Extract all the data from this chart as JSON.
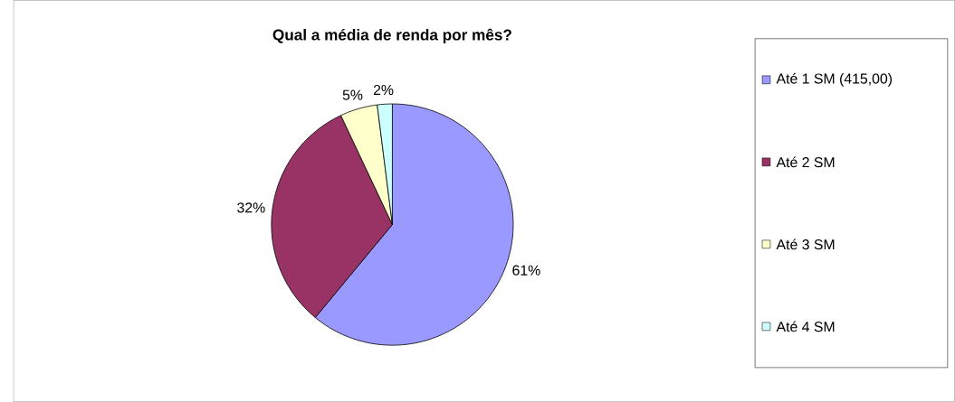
{
  "chart_data": {
    "type": "pie",
    "title": "Qual a média de renda por mês?",
    "categories": [
      "Até 1 SM (415,00)",
      "Até 2 SM",
      "Até 3 SM",
      "Até 4 SM"
    ],
    "values": [
      61,
      32,
      5,
      2
    ],
    "value_labels": [
      "61%",
      "32%",
      "5%",
      "2%"
    ],
    "colors": [
      "#9999ff",
      "#993366",
      "#ffffcc",
      "#ccffff"
    ],
    "legend": "right"
  }
}
